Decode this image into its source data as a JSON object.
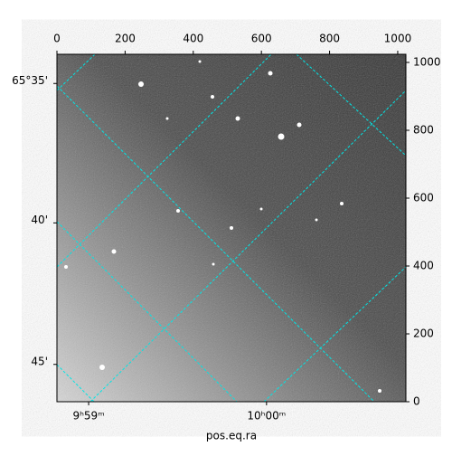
{
  "chart_data": {
    "type": "image",
    "xlabel": "pos.eq.ra",
    "xlim": [
      0,
      1024
    ],
    "ylim": [
      0,
      1024
    ],
    "xticks": [
      0,
      200,
      400,
      600,
      800,
      1000
    ],
    "yticks": [
      0,
      200,
      400,
      600,
      800,
      1000
    ],
    "ra_ticks": [
      {
        "value": 93,
        "label": "9ʰ59ᵐ"
      },
      {
        "value": 615,
        "label": "10ʰ00ᵐ"
      }
    ],
    "dec_ticks": [
      {
        "value": 938,
        "label": "65°35'"
      },
      {
        "value": 527,
        "label": "40'"
      },
      {
        "value": 110,
        "label": "45'"
      }
    ],
    "grid_color": "#00e5e5"
  }
}
